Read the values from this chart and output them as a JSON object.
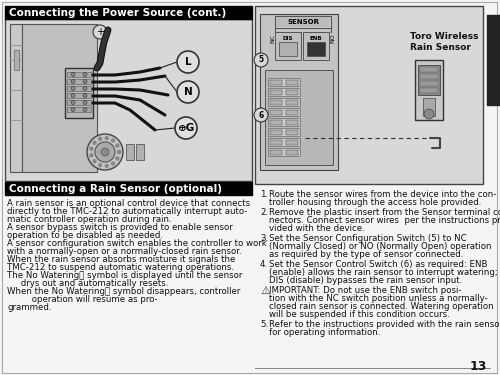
{
  "page_bg": "#f5f5f5",
  "header_bg": "#000000",
  "header_fg": "#ffffff",
  "header1_text": "Connecting the Power Source (cont.)",
  "header2_text": "Connecting a Rain Sensor (optional)",
  "body_text_left": [
    "A rain sensor is an optional control device that connects",
    "directly to the TMC-212 to automatically interrupt auto-",
    "matic controller operation during rain.",
    "A sensor bypass switch is provided to enable sensor",
    "operation to be disabled as needed.",
    "A sensor configuration switch enables the controller to work",
    "with a normally-open or a normally-closed rain sensor.",
    "When the rain sensor absorbs moisture it signals the",
    "TMC-212 to suspend automatic watering operations.",
    "The No Wateringⓘ symbol is displayed until the sensor",
    "     drys out and automatically resets.",
    "When the No Wateringⓘ symbol disappears, controller",
    "         operation will resume as pro-",
    "grammed."
  ],
  "numbered_items": [
    [
      "Route the sensor wires from the device into the con-",
      "troller housing through the access hole provided."
    ],
    [
      "Remove the plastic insert from the Sensor terminal con-",
      "nectors. Connect sensor wires  per the instructions pro-",
      "vided with the device."
    ],
    [
      "Set the Sensor Configuration Switch (5) to ",
      "NC",
      " (Normally Closed) or ",
      "NO",
      " (Normally Open) operation",
      "as required by the type of sensor connected."
    ],
    [
      "Set the Sensor Control Switch (6) as required: ",
      "ENB",
      " (enable) allows the rain sensor to interrupt watering;",
      "DIS",
      " (disable) bypasses the rain sensor input."
    ],
    [
      "Refer to the instructions provided with the rain sensor",
      "for operating information."
    ]
  ],
  "important_lines": [
    [
      "IMPORTANT: Do not",
      " use the ",
      "ENB",
      " switch posi-"
    ],
    [
      "tion with the ",
      "NC",
      " switch position unless a normally-"
    ],
    [
      "closed rain sensor is connected. Watering operation"
    ],
    [
      "will be suspended if this condition occurs."
    ]
  ],
  "page_number": "13",
  "rain_sensor_label": "Toro Wireless\nRain Sensor",
  "font_size_header": 7.5,
  "font_size_body": 6.2,
  "font_size_numbered": 6.2,
  "right_tab_color": "#222222",
  "diagram_bg": "#e0e0e0",
  "diagram_border": "#444444"
}
